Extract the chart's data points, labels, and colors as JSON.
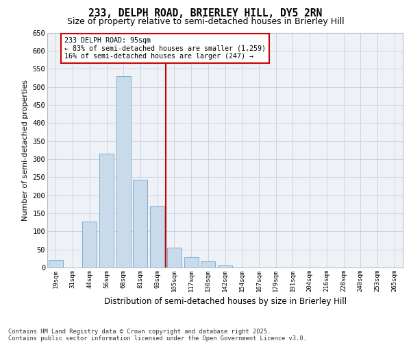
{
  "title1": "233, DELPH ROAD, BRIERLEY HILL, DY5 2RN",
  "title2": "Size of property relative to semi-detached houses in Brierley Hill",
  "xlabel": "Distribution of semi-detached houses by size in Brierley Hill",
  "ylabel": "Number of semi-detached properties",
  "bins": [
    "19sqm",
    "31sqm",
    "44sqm",
    "56sqm",
    "68sqm",
    "81sqm",
    "93sqm",
    "105sqm",
    "117sqm",
    "130sqm",
    "142sqm",
    "154sqm",
    "167sqm",
    "179sqm",
    "191sqm",
    "204sqm",
    "216sqm",
    "228sqm",
    "240sqm",
    "253sqm",
    "265sqm"
  ],
  "values": [
    20,
    0,
    128,
    315,
    530,
    243,
    170,
    55,
    29,
    18,
    5,
    0,
    0,
    0,
    0,
    0,
    0,
    0,
    0,
    0,
    0
  ],
  "bar_color": "#c9daea",
  "bar_edge_color": "#7bafd4",
  "vline_x": 6.5,
  "vline_color": "#cc0000",
  "annotation_line1": "233 DELPH ROAD: 95sqm",
  "annotation_line2": "← 83% of semi-detached houses are smaller (1,259)",
  "annotation_line3": "16% of semi-detached houses are larger (247) →",
  "ylim": [
    0,
    650
  ],
  "yticks": [
    0,
    50,
    100,
    150,
    200,
    250,
    300,
    350,
    400,
    450,
    500,
    550,
    600,
    650
  ],
  "footer1": "Contains HM Land Registry data © Crown copyright and database right 2025.",
  "footer2": "Contains public sector information licensed under the Open Government Licence v3.0.",
  "bg_color": "#eef2f7",
  "grid_color": "#c5d0dc",
  "title1_fontsize": 10.5,
  "title2_fontsize": 9
}
